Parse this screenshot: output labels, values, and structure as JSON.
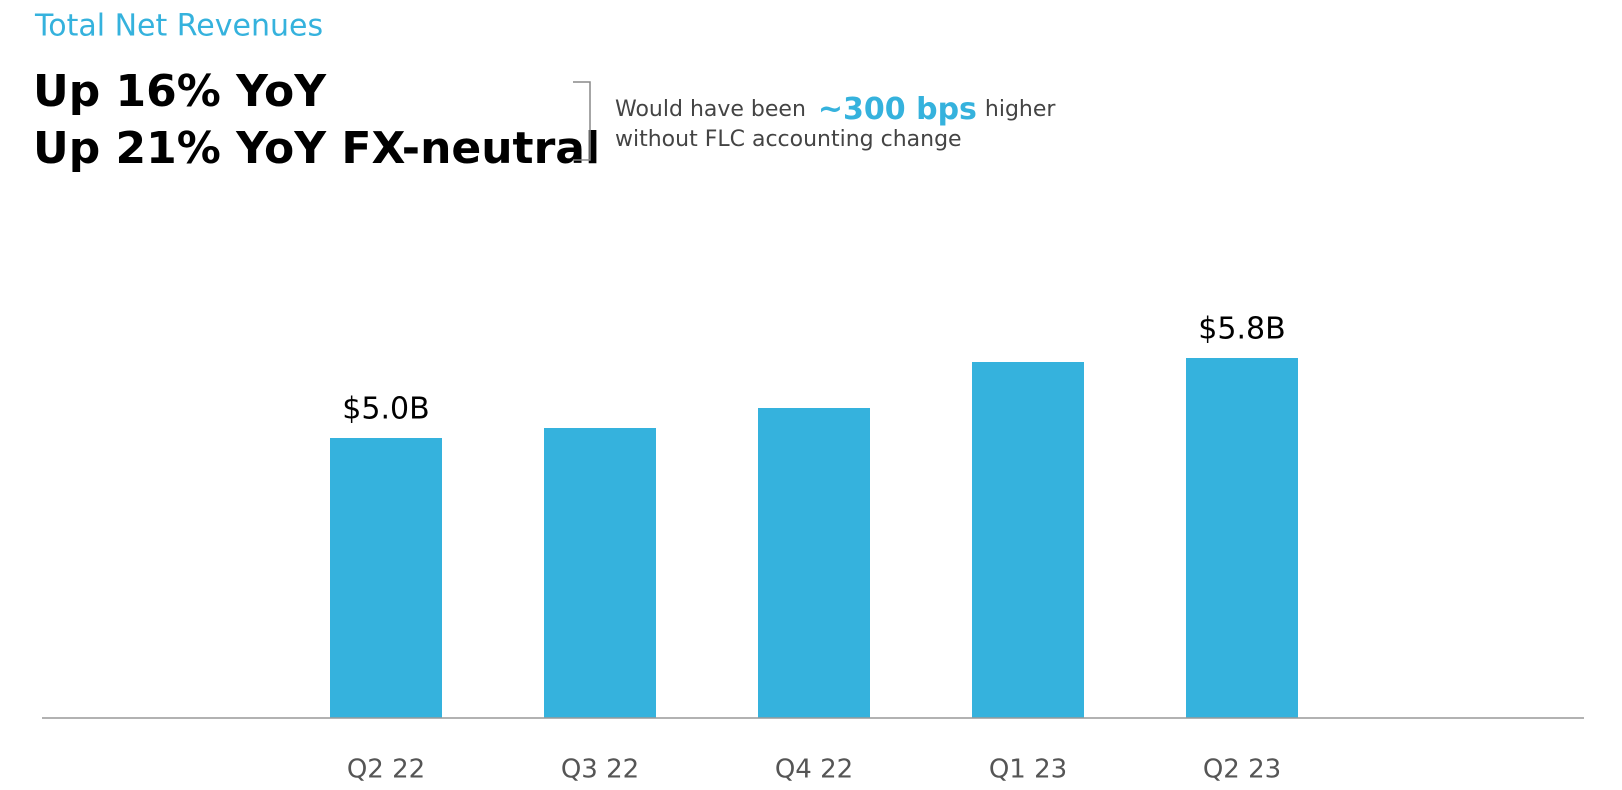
{
  "chart_data": {
    "type": "bar",
    "title": "Total Net Revenues",
    "headline": [
      "Up 16% YoY",
      "Up 21% YoY FX-neutral"
    ],
    "note": {
      "prefix": "Would have been",
      "highlight": "~300 bps",
      "suffix": "higher",
      "line2": "without FLC accounting change"
    },
    "categories": [
      "Q2 22",
      "Q3 22",
      "Q4 22",
      "Q1 23",
      "Q2 23"
    ],
    "values": [
      5.0,
      5.1,
      5.3,
      5.76,
      5.8
    ],
    "value_labels": [
      "$5.0B",
      null,
      null,
      null,
      "$5.8B"
    ],
    "color": "#35b2dd",
    "ylim": [
      2.2,
      7.4
    ]
  }
}
